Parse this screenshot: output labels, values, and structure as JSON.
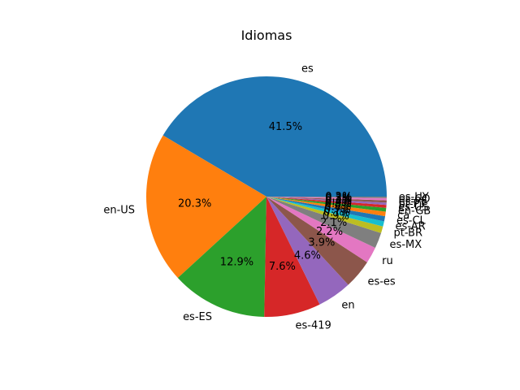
{
  "chart_data": {
    "type": "pie",
    "title": "Idiomas",
    "categories": [
      "es",
      "en-US",
      "es-ES",
      "es-419",
      "en",
      "es-es",
      "ru",
      "es-MX",
      "pt-BR",
      "es-AR",
      "es-CL",
      "ca",
      "en-GB",
      "es-US",
      "pt-PT",
      "es-PE",
      "es-CO",
      "es-UY"
    ],
    "values": [
      41.5,
      20.3,
      12.9,
      7.6,
      4.6,
      3.9,
      2.2,
      2.1,
      0.9,
      0.7,
      0.7,
      0.6,
      0.5,
      0.4,
      0.3,
      0.3,
      0.3,
      0.2
    ],
    "percent_labels": [
      "41.5%",
      "20.3%",
      "12.9%",
      "7.6%",
      "4.6%",
      "3.9%",
      "2.2%",
      "2.1%",
      "0.9%",
      "0.7%",
      "0.7%",
      "0.6%",
      "0.5%",
      "0.4%",
      "0.3%",
      "0.3%",
      "0.3%",
      "0.2%"
    ],
    "colors": [
      "#1f77b4",
      "#ff7f0e",
      "#2ca02c",
      "#d62728",
      "#9467bd",
      "#8c564b",
      "#e377c2",
      "#7f7f7f",
      "#bcbd22",
      "#17becf",
      "#1f77b4",
      "#ff7f0e",
      "#2ca02c",
      "#d62728",
      "#9467bd",
      "#8c564b",
      "#e377c2",
      "#7f7f7f"
    ],
    "start_angle": 0,
    "direction": "counterclockwise",
    "legend": "none"
  }
}
